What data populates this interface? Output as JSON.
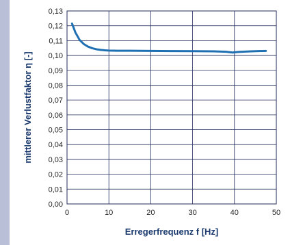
{
  "chart_data": {
    "type": "line",
    "title": "",
    "xlabel": "Erregerfrequenz f [Hz]",
    "ylabel": "mittlerer Verlustfaktor η [-]",
    "xlim": [
      0,
      50
    ],
    "ylim": [
      0.0,
      0.13
    ],
    "x_ticks": [
      "0",
      "10",
      "20",
      "30",
      "40",
      "50"
    ],
    "y_ticks": [
      "0,00",
      "0,01",
      "0,02",
      "0,03",
      "0,04",
      "0,05",
      "0,06",
      "0,07",
      "0,08",
      "0,09",
      "0,10",
      "0,11",
      "0,12",
      "0,13"
    ],
    "grid": true,
    "legend": "none",
    "series": [
      {
        "color": "#1f6fb3",
        "x": [
          1.2,
          2,
          3,
          4,
          5,
          6,
          7,
          8,
          9,
          10,
          12,
          15,
          20,
          25,
          30,
          35,
          38,
          39.5,
          41,
          44,
          47.5
        ],
        "y": [
          0.1215,
          0.1155,
          0.1105,
          0.1077,
          0.106,
          0.1049,
          0.1042,
          0.1038,
          0.1035,
          0.1033,
          0.1032,
          0.1032,
          0.1031,
          0.103,
          0.1029,
          0.1028,
          0.1025,
          0.102,
          0.1024,
          0.1028,
          0.1031
        ]
      }
    ]
  }
}
